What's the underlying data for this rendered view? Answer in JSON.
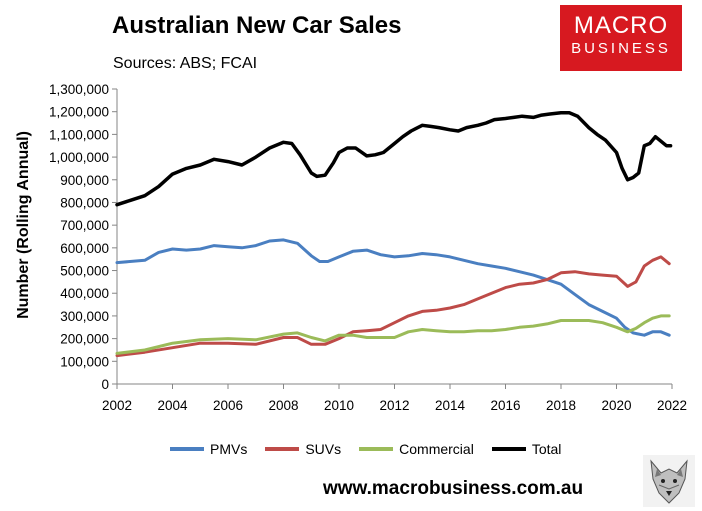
{
  "header": {
    "title": "Australian New Car Sales",
    "subtitle": "Sources: ABS; FCAI"
  },
  "logo": {
    "line1": "MACRO",
    "line2": "BUSINESS",
    "color": "#d71920"
  },
  "footer": {
    "website": "www.macrobusiness.com.au"
  },
  "chart_data": {
    "type": "line",
    "title": "Australian New Car Sales",
    "subtitle": "Sources: ABS; FCAI",
    "ylabel": "Number (Rolling Annual)",
    "xlabel": "",
    "xlim": [
      2002,
      2022
    ],
    "ylim": [
      0,
      1300000
    ],
    "x_ticks": [
      2002,
      2004,
      2006,
      2008,
      2010,
      2012,
      2014,
      2016,
      2018,
      2020,
      2022
    ],
    "y_ticks": [
      0,
      100000,
      200000,
      300000,
      400000,
      500000,
      600000,
      700000,
      800000,
      900000,
      1000000,
      1100000,
      1200000,
      1300000
    ],
    "y_tick_labels": [
      "0",
      "100,000",
      "200,000",
      "300,000",
      "400,000",
      "500,000",
      "600,000",
      "700,000",
      "800,000",
      "900,000",
      "1,000,000",
      "1,100,000",
      "1,200,000",
      "1,300,000"
    ],
    "grid": false,
    "legend_position": "bottom",
    "series": [
      {
        "name": "PMVs",
        "color": "#4a7fc1",
        "x": [
          2002,
          2003,
          2003.5,
          2004,
          2004.5,
          2005,
          2005.5,
          2006,
          2006.5,
          2007,
          2007.5,
          2008,
          2008.5,
          2009,
          2009.3,
          2009.6,
          2010,
          2010.5,
          2011,
          2011.5,
          2012,
          2012.5,
          2013,
          2013.5,
          2014,
          2014.5,
          2015,
          2015.5,
          2016,
          2016.5,
          2017,
          2017.5,
          2018,
          2018.5,
          2019,
          2019.5,
          2020,
          2020.3,
          2020.6,
          2021,
          2021.3,
          2021.6,
          2021.9
        ],
        "y": [
          535000,
          545000,
          580000,
          595000,
          590000,
          595000,
          610000,
          605000,
          600000,
          610000,
          630000,
          635000,
          620000,
          565000,
          540000,
          540000,
          560000,
          585000,
          590000,
          570000,
          560000,
          565000,
          575000,
          570000,
          560000,
          545000,
          530000,
          520000,
          510000,
          495000,
          480000,
          460000,
          440000,
          395000,
          350000,
          320000,
          290000,
          250000,
          225000,
          215000,
          230000,
          230000,
          215000
        ]
      },
      {
        "name": "SUVs",
        "color": "#be4b48",
        "x": [
          2002,
          2003,
          2004,
          2005,
          2006,
          2007,
          2008,
          2008.5,
          2009,
          2009.5,
          2010,
          2010.5,
          2011,
          2011.5,
          2012,
          2012.5,
          2013,
          2013.5,
          2014,
          2014.5,
          2015,
          2015.5,
          2016,
          2016.5,
          2017,
          2017.5,
          2018,
          2018.5,
          2019,
          2019.5,
          2020,
          2020.4,
          2020.7,
          2021,
          2021.3,
          2021.6,
          2021.9
        ],
        "y": [
          125000,
          140000,
          160000,
          180000,
          180000,
          175000,
          205000,
          205000,
          175000,
          175000,
          200000,
          230000,
          235000,
          240000,
          270000,
          300000,
          320000,
          325000,
          335000,
          350000,
          375000,
          400000,
          425000,
          440000,
          445000,
          460000,
          490000,
          495000,
          485000,
          480000,
          475000,
          430000,
          450000,
          520000,
          545000,
          560000,
          530000
        ]
      },
      {
        "name": "Commercial",
        "color": "#9bbb59",
        "x": [
          2002,
          2003,
          2004,
          2005,
          2006,
          2007,
          2008,
          2008.5,
          2009,
          2009.5,
          2010,
          2010.5,
          2011,
          2011.5,
          2012,
          2012.5,
          2013,
          2013.5,
          2014,
          2014.5,
          2015,
          2015.5,
          2016,
          2016.5,
          2017,
          2017.5,
          2018,
          2018.5,
          2019,
          2019.5,
          2020,
          2020.4,
          2020.7,
          2021,
          2021.3,
          2021.6,
          2021.9
        ],
        "y": [
          135000,
          150000,
          180000,
          195000,
          200000,
          195000,
          220000,
          225000,
          205000,
          190000,
          215000,
          215000,
          205000,
          205000,
          205000,
          230000,
          240000,
          235000,
          230000,
          230000,
          235000,
          235000,
          240000,
          250000,
          255000,
          265000,
          280000,
          280000,
          280000,
          270000,
          250000,
          230000,
          245000,
          270000,
          290000,
          300000,
          300000
        ]
      },
      {
        "name": "Total",
        "color": "#000000",
        "x": [
          2002,
          2002.5,
          2003,
          2003.5,
          2004,
          2004.5,
          2005,
          2005.5,
          2006,
          2006.5,
          2007,
          2007.5,
          2008,
          2008.3,
          2008.6,
          2009,
          2009.2,
          2009.5,
          2009.8,
          2010,
          2010.3,
          2010.6,
          2011,
          2011.3,
          2011.6,
          2012,
          2012.3,
          2012.6,
          2013,
          2013.3,
          2013.6,
          2014,
          2014.3,
          2014.6,
          2015,
          2015.3,
          2015.6,
          2016,
          2016.3,
          2016.6,
          2017,
          2017.3,
          2017.6,
          2018,
          2018.3,
          2018.6,
          2019,
          2019.3,
          2019.6,
          2020,
          2020.2,
          2020.4,
          2020.6,
          2020.8,
          2021,
          2021.2,
          2021.4,
          2021.6,
          2021.8,
          2021.95
        ],
        "y": [
          790000,
          810000,
          830000,
          870000,
          925000,
          950000,
          965000,
          990000,
          980000,
          965000,
          1000000,
          1040000,
          1065000,
          1060000,
          1010000,
          930000,
          915000,
          920000,
          975000,
          1020000,
          1040000,
          1040000,
          1005000,
          1010000,
          1020000,
          1060000,
          1090000,
          1115000,
          1140000,
          1135000,
          1130000,
          1120000,
          1115000,
          1130000,
          1140000,
          1150000,
          1165000,
          1170000,
          1175000,
          1180000,
          1175000,
          1185000,
          1190000,
          1195000,
          1195000,
          1180000,
          1130000,
          1100000,
          1075000,
          1020000,
          950000,
          900000,
          910000,
          930000,
          1050000,
          1060000,
          1090000,
          1070000,
          1050000,
          1050000
        ]
      }
    ]
  }
}
